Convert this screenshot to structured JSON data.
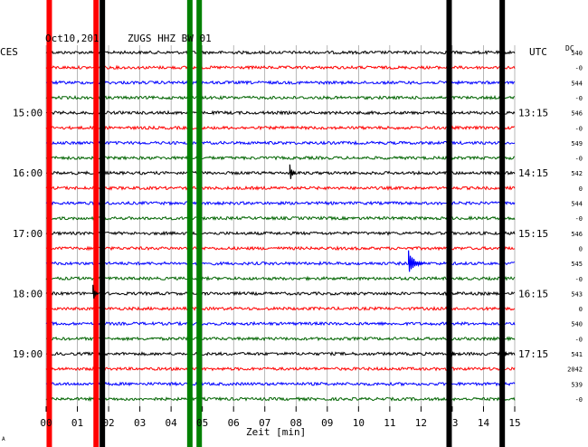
{
  "header": {
    "date": "Oct10,2011",
    "station": "ZUGS HHZ BW 01",
    "tz_left": "CES",
    "tz_right": "UTC",
    "dc_label": "DC"
  },
  "left_hours": [
    "15:00",
    "16:00",
    "17:00",
    "18:00",
    "19:00"
  ],
  "right_hours": [
    "13:15",
    "14:15",
    "15:15",
    "16:15",
    "17:15"
  ],
  "dc_values": [
    "540",
    "-0",
    "544",
    "-0",
    "546",
    "-0",
    "549",
    "-0",
    "542",
    "0",
    "544",
    "-0",
    "546",
    "0",
    "545",
    "-0",
    "543",
    "0",
    "540",
    "-0",
    "541",
    "2042",
    "539",
    "-0"
  ],
  "x_ticks": [
    "00",
    "01",
    "02",
    "03",
    "04",
    "05",
    "06",
    "07",
    "08",
    "09",
    "10",
    "11",
    "12",
    "13",
    "14",
    "15"
  ],
  "xlabel": "Zeit [min]",
  "corner_mark": "A",
  "colors": {
    "trace_cycle": [
      "#000000",
      "#ff0000",
      "#0000ff",
      "#006400"
    ],
    "grid": "#888888",
    "background": "#ffffff"
  },
  "chart_data": {
    "type": "seismogram",
    "title": "Oct10,2011   ZUGS HHZ BW 01",
    "xlabel": "Zeit [min]",
    "x_range_min": [
      0,
      15
    ],
    "traces_count": 24,
    "trace_interval_min": 15,
    "trace_colors_order": [
      "black",
      "red",
      "blue",
      "green"
    ],
    "interference_columns": [
      {
        "minute": 0.1,
        "color": "#ff0000",
        "traces": "all"
      },
      {
        "minute": 1.6,
        "color": "#ff0000",
        "traces": "all"
      },
      {
        "minute": 1.8,
        "color": "#000000",
        "traces": "all"
      },
      {
        "minute": 4.6,
        "color": "#008000",
        "traces": "all"
      },
      {
        "minute": 4.9,
        "color": "#008000",
        "traces": "all"
      },
      {
        "minute": 12.9,
        "color": "#000000",
        "traces": "all"
      },
      {
        "minute": 14.6,
        "color": "#000000",
        "traces": "all"
      }
    ],
    "events": [
      {
        "trace": 8,
        "minute": 7.8,
        "description": "short spike"
      },
      {
        "trace": 14,
        "minute": 11.6,
        "description": "seismic event"
      },
      {
        "trace": 16,
        "minute": 1.5,
        "description": "burst"
      },
      {
        "trace": 20,
        "minute": 12.9,
        "description": "burst"
      },
      {
        "trace": 20,
        "minute": 14.6,
        "description": "burst"
      }
    ]
  }
}
